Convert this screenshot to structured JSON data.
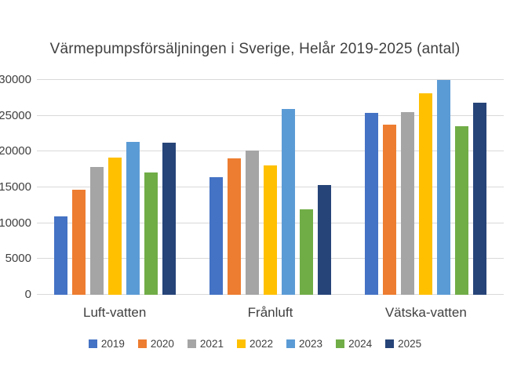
{
  "title": "Värmepumpsförsäljningen i Sverige, Helår 2019-2025 (antal)",
  "chart_data": {
    "type": "bar",
    "title": "Värmepumpsförsäljningen i Sverige, Helår 2019-2025 (antal)",
    "categories": [
      "Luft-vatten",
      "Frånluft",
      "Vätska-vatten"
    ],
    "series": [
      {
        "name": "2019",
        "color": "#4472C4",
        "values": [
          11000,
          16400,
          25400
        ]
      },
      {
        "name": "2020",
        "color": "#ED7D31",
        "values": [
          14700,
          19000,
          23800
        ]
      },
      {
        "name": "2021",
        "color": "#A5A5A5",
        "values": [
          17900,
          20100,
          25500
        ]
      },
      {
        "name": "2022",
        "color": "#FFC000",
        "values": [
          19200,
          18100,
          28100
        ]
      },
      {
        "name": "2023",
        "color": "#5B9BD5",
        "values": [
          21300,
          25900,
          30000
        ]
      },
      {
        "name": "2024",
        "color": "#70AD47",
        "values": [
          17100,
          11900,
          23500
        ]
      },
      {
        "name": "2025",
        "color": "#264478",
        "values": [
          21200,
          15300,
          26800
        ]
      }
    ],
    "y_axis": {
      "min": 0,
      "max": 30000,
      "step": 5000,
      "ticks": [
        "0",
        "5000",
        "10000",
        "15000",
        "20000",
        "25000",
        "30000"
      ]
    },
    "grid": true,
    "legend_position": "bottom"
  },
  "colors": {
    "grid": "#D9D9D9",
    "text": "#404040",
    "background": "#FFFFFF"
  }
}
